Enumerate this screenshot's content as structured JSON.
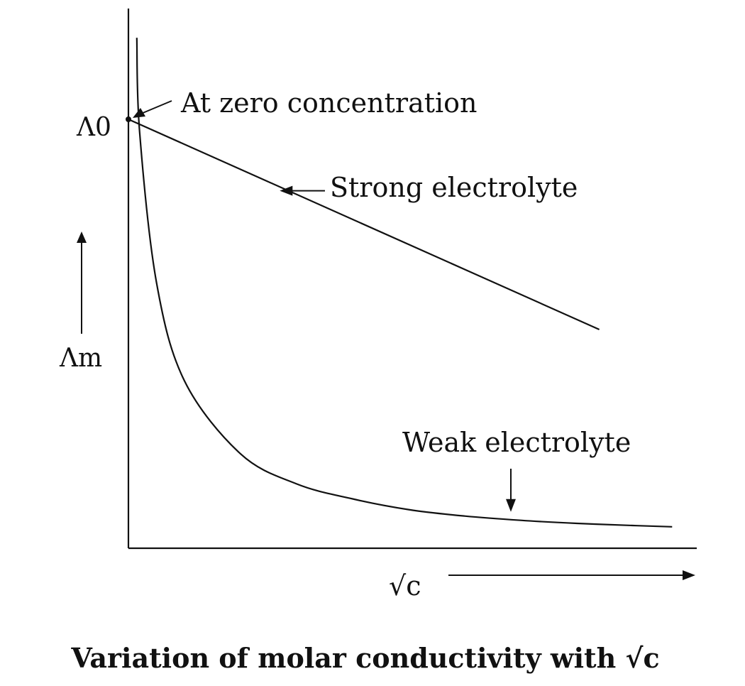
{
  "chart_data": {
    "type": "line",
    "title": "Variation of molar conductivity with √c",
    "xlabel": "√c",
    "ylabel": "Λm",
    "y_intercept_label": "Λ0",
    "grid": false,
    "legend": "none",
    "series": [
      {
        "name": "Strong electrolyte",
        "shape": "linear",
        "x": [
          0,
          0.84
        ],
        "y": [
          1.0,
          0.51
        ]
      },
      {
        "name": "Weak electrolyte",
        "shape": "hyperbolic",
        "x": [
          0.015,
          0.02,
          0.05,
          0.1,
          0.2,
          0.3,
          0.4,
          0.5,
          0.6,
          0.7,
          0.8,
          0.9,
          0.97
        ],
        "y": [
          1.19,
          0.97,
          0.62,
          0.39,
          0.22,
          0.15,
          0.115,
          0.09,
          0.075,
          0.065,
          0.058,
          0.053,
          0.05
        ]
      }
    ],
    "annotations": [
      {
        "text": "At zero concentration",
        "target": "Λ0",
        "target_x": 0,
        "target_y": 1.0
      },
      {
        "text": "Strong electrolyte",
        "target_x": 0.27,
        "target_y": 0.84
      },
      {
        "text": "Weak electrolyte",
        "target_x": 0.7,
        "target_y": 0.065
      }
    ]
  }
}
